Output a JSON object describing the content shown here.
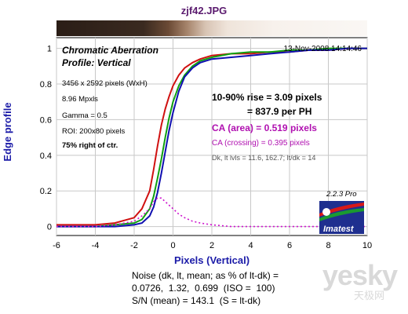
{
  "file_title": "zjf42.JPG",
  "chart_data": {
    "type": "line",
    "title": "Chromatic Aberration",
    "subtitle": "Profile: Vertical",
    "timestamp": "13-Nov-2008 14:14:46",
    "xlabel": "Pixels (Vertical)",
    "ylabel": "Edge profile",
    "xlim": [
      -6,
      10
    ],
    "ylim": [
      -0.05,
      1.06
    ],
    "x_ticks": [
      -6,
      -4,
      -2,
      0,
      2,
      4,
      6,
      8,
      10
    ],
    "y_ticks": [
      0,
      0.2,
      0.4,
      0.6,
      0.8,
      1
    ],
    "y_tick_labels": [
      "0",
      "0.2",
      "0.4",
      "0.6",
      "0.8",
      "1"
    ],
    "grid": true,
    "series": [
      {
        "color": "#d01010",
        "dashed": false,
        "x": [
          -6,
          -4,
          -3,
          -2,
          -1.6,
          -1.2,
          -1.0,
          -0.8,
          -0.6,
          -0.4,
          -0.2,
          0,
          0.3,
          0.6,
          1,
          1.4,
          2,
          3,
          4,
          5,
          6,
          7,
          8,
          9,
          10
        ],
        "y": [
          0.01,
          0.01,
          0.02,
          0.05,
          0.1,
          0.2,
          0.32,
          0.45,
          0.57,
          0.66,
          0.73,
          0.79,
          0.85,
          0.89,
          0.92,
          0.94,
          0.96,
          0.97,
          0.97,
          0.98,
          0.98,
          0.99,
          0.99,
          1.0,
          1.0
        ]
      },
      {
        "color": "#10a010",
        "dashed": false,
        "x": [
          -6,
          -4,
          -3,
          -2,
          -1.6,
          -1.2,
          -1.0,
          -0.8,
          -0.6,
          -0.4,
          -0.2,
          0,
          0.3,
          0.6,
          1,
          1.4,
          2,
          3,
          4,
          5,
          6,
          7,
          8,
          9,
          10
        ],
        "y": [
          0.0,
          0.0,
          0.01,
          0.02,
          0.04,
          0.1,
          0.17,
          0.27,
          0.38,
          0.5,
          0.61,
          0.7,
          0.79,
          0.85,
          0.9,
          0.93,
          0.95,
          0.97,
          0.98,
          0.98,
          0.99,
          0.99,
          1.0,
          1.0,
          1.0
        ]
      },
      {
        "color": "#1010b0",
        "dashed": false,
        "x": [
          -6,
          -4,
          -3,
          -2,
          -1.6,
          -1.2,
          -1.0,
          -0.8,
          -0.6,
          -0.4,
          -0.2,
          0,
          0.3,
          0.6,
          1,
          1.4,
          2,
          3,
          4,
          5,
          6,
          7,
          8,
          9,
          10
        ],
        "y": [
          0.0,
          0.0,
          0.0,
          0.01,
          0.02,
          0.06,
          0.11,
          0.19,
          0.3,
          0.42,
          0.54,
          0.64,
          0.76,
          0.84,
          0.89,
          0.92,
          0.94,
          0.95,
          0.96,
          0.97,
          0.98,
          0.99,
          0.99,
          1.0,
          1.0
        ]
      },
      {
        "color": "#cc10cc",
        "dashed": true,
        "x": [
          -6,
          -4,
          -3,
          -2,
          -1.6,
          -1.2,
          -1.0,
          -0.8,
          -0.6,
          -0.4,
          -0.2,
          0,
          0.3,
          0.6,
          1,
          1.4,
          2,
          3,
          4,
          5,
          6,
          7,
          8,
          9,
          10
        ],
        "y": [
          0.0,
          0.0,
          0.01,
          0.03,
          0.06,
          0.1,
          0.14,
          0.16,
          0.16,
          0.14,
          0.12,
          0.1,
          0.07,
          0.05,
          0.03,
          0.02,
          0.01,
          0.0,
          0.0,
          0.0,
          0.0,
          0.0,
          0.0,
          0.0,
          0.0
        ]
      }
    ],
    "annotations": {
      "image_size": "3456 x 2592 pixels (WxH)",
      "mpixels": "8.96 Mpxls",
      "gamma": "Gamma = 0.5",
      "roi": "ROI: 200x80 pixels",
      "position": "75% right of ctr.",
      "rise_line1": "10-90% rise = 3.09 pixels",
      "rise_line2": "= 837.9 per PH",
      "ca_area": "CA (area) = 0.519 pixels",
      "ca_crossing": "CA (crossing) = 0.395 pixels",
      "levels": "Dk, lt lvls = 11.6, 162.7;  lt/dk = 14",
      "version": "2.2.3  Pro",
      "logo_text": "Imatest"
    }
  },
  "noise": {
    "line1": "Noise (dk, lt, mean; as % of lt-dk) =",
    "line2": "0.0726,  1.32,  0.699  (ISO =  100)",
    "line3": "S/N (mean) = 143.1  (S = lt-dk)"
  },
  "watermark": {
    "main": "yesky",
    "sub": "天极网"
  }
}
